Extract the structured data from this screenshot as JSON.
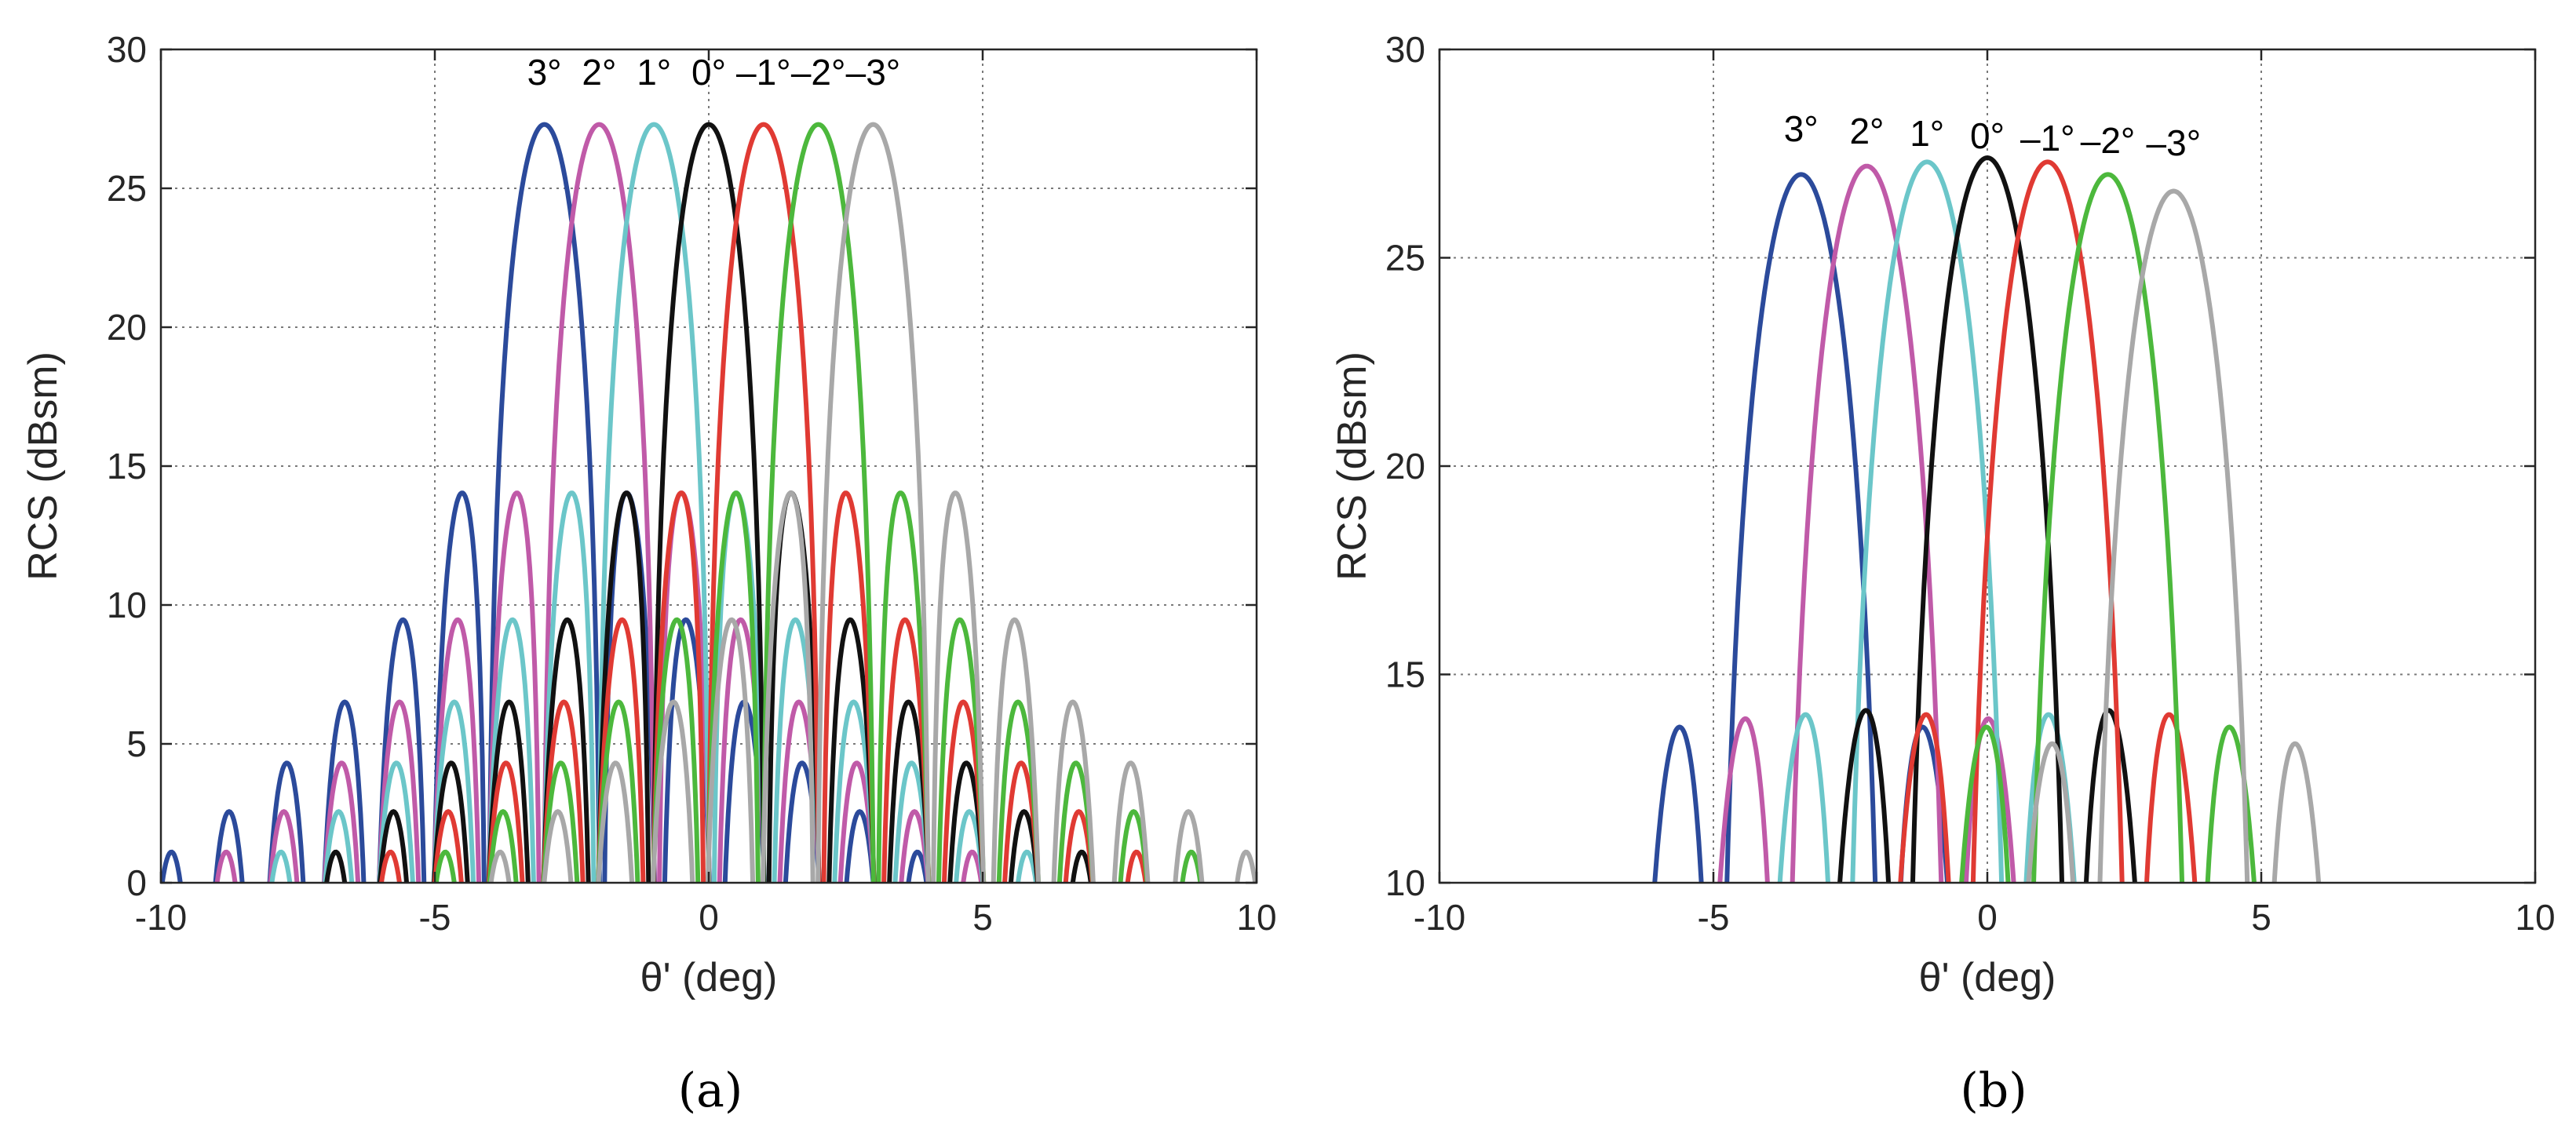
{
  "chart_data": [
    {
      "type": "line",
      "panel": "a",
      "caption": "(a)",
      "xlabel": "θ' (deg)",
      "ylabel": "RCS (dBsm)",
      "xlim": [
        -10,
        10
      ],
      "ylim": [
        0,
        30
      ],
      "xticks": [
        -10,
        -5,
        0,
        5,
        10
      ],
      "yticks": [
        0,
        5,
        10,
        15,
        20,
        25,
        30
      ],
      "grid": true,
      "model": {
        "kind": "sinc",
        "peak": 27.3,
        "null_spacing": 1.05,
        "mainlobe_halfwidth": 1.9
      },
      "series": [
        {
          "name": "3°",
          "label": "3°",
          "center": -3,
          "color": "#2b4a9b"
        },
        {
          "name": "2°",
          "label": "2°",
          "center": -2,
          "color": "#c05aa8"
        },
        {
          "name": "1°",
          "label": "1°",
          "center": -1,
          "color": "#6bc6c9"
        },
        {
          "name": "0°",
          "label": "0°",
          "center": 0,
          "color": "#111111"
        },
        {
          "name": "-1°",
          "label": "–1°",
          "center": 1,
          "color": "#e03a33"
        },
        {
          "name": "-2°",
          "label": "–2°",
          "center": 2,
          "color": "#4cb83c"
        },
        {
          "name": "-3°",
          "label": "–3°",
          "center": 3,
          "color": "#a8a8a8"
        }
      ]
    },
    {
      "type": "line",
      "panel": "b",
      "caption": "(b)",
      "xlabel": "θ' (deg)",
      "ylabel": "RCS (dBsm)",
      "xlim": [
        -10,
        10
      ],
      "ylim": [
        10,
        30
      ],
      "xticks": [
        -10,
        -5,
        0,
        5,
        10
      ],
      "yticks": [
        10,
        15,
        20,
        25,
        30
      ],
      "grid": true,
      "model": {
        "kind": "sinc",
        "peak": 27.3,
        "null_spacing": 1.55,
        "mainlobe_halfwidth": 2.6
      },
      "series": [
        {
          "name": "3°",
          "label": "3°",
          "center": -3.4,
          "peak": 27.0,
          "color": "#2b4a9b"
        },
        {
          "name": "2°",
          "label": "2°",
          "center": -2.2,
          "peak": 27.2,
          "color": "#c05aa8"
        },
        {
          "name": "1°",
          "label": "1°",
          "center": -1.1,
          "peak": 27.3,
          "color": "#6bc6c9"
        },
        {
          "name": "0°",
          "label": "0°",
          "center": 0.0,
          "peak": 27.4,
          "color": "#111111"
        },
        {
          "name": "-1°",
          "label": "–1°",
          "center": 1.1,
          "peak": 27.3,
          "color": "#e03a33"
        },
        {
          "name": "-2°",
          "label": "–2°",
          "center": 2.2,
          "peak": 27.0,
          "color": "#4cb83c"
        },
        {
          "name": "-3°",
          "label": "–3°",
          "center": 3.4,
          "peak": 26.6,
          "color": "#a8a8a8"
        }
      ]
    }
  ]
}
